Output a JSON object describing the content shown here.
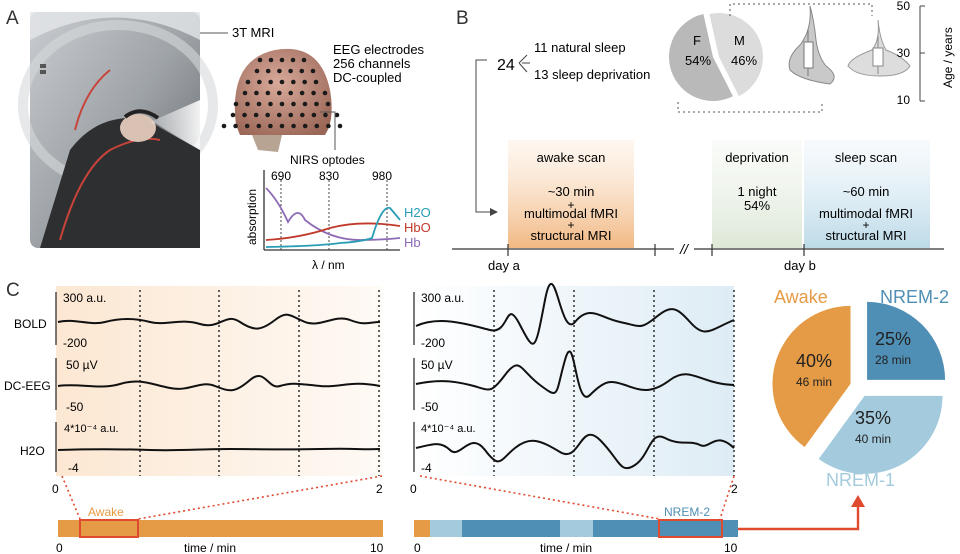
{
  "panels": {
    "a": "A",
    "b": "B",
    "c": "C"
  },
  "panel_a": {
    "mri_label": "3T MRI",
    "eeg": {
      "title": "EEG electrodes",
      "channels": "256 channels",
      "coupling": "DC-coupled"
    },
    "nirs": {
      "title": "NIRS optodes",
      "ylabel": "absorption",
      "xlabel": "λ / nm",
      "wavelengths": [
        "690",
        "830",
        "980"
      ],
      "legend": [
        {
          "name": "H2O",
          "color": "#2a9db5"
        },
        {
          "name": "HbO",
          "color": "#c0392b"
        },
        {
          "name": "Hb",
          "color": "#8e6bb5"
        }
      ]
    }
  },
  "panel_b": {
    "total": "24",
    "group1": "11 natural sleep",
    "group2": "13 sleep deprivation",
    "pie": {
      "f_label": "F",
      "f_value": "54%",
      "m_label": "M",
      "m_value": "46%",
      "f_fraction": 0.54
    },
    "age_axis": {
      "label": "Age / years",
      "ticks": [
        "50",
        "30",
        "10"
      ]
    },
    "awake_scan": {
      "title": "awake scan",
      "line1": "~30 min",
      "line2": "multimodal fMRI",
      "plus": "+",
      "line3": "structural MRI"
    },
    "deprivation": {
      "title": "deprivation",
      "line1": "1 night",
      "line2": "54%"
    },
    "sleep_scan": {
      "title": "sleep scan",
      "line1": "~60 min",
      "line2": "multimodal fMRI",
      "plus": "+",
      "line3": "structural MRI"
    },
    "day_a": "day a",
    "day_b": "day b",
    "break_mark": "//"
  },
  "panel_c": {
    "rows": [
      {
        "name": "BOLD",
        "top": "300 a.u.",
        "bottom": "-200"
      },
      {
        "name": "DC-EEG",
        "top": "50 µV",
        "bottom": "-50"
      },
      {
        "name": "H2O",
        "top": "4*10⁻⁴ a.u.",
        "bottom": "-4"
      }
    ],
    "x_start": "0",
    "x_end": "2",
    "timeline_left": {
      "label": "Awake",
      "x_start": "0",
      "x_end": "10",
      "xlabel": "time / min"
    },
    "timeline_right": {
      "label": "NREM-2",
      "x_start": "0",
      "x_end": "10",
      "xlabel": "time / min"
    },
    "colors": {
      "awake": "#e59a45",
      "nrem1": "#a3cbdd",
      "nrem2": "#4f8fb5",
      "highlight": "#e04a2f"
    }
  },
  "chart_data": {
    "type": "pie",
    "slices": [
      {
        "name": "Awake",
        "percent": "40%",
        "minutes": "46 min",
        "value": 40,
        "color": "#e59a45"
      },
      {
        "name": "NREM-2",
        "percent": "25%",
        "minutes": "28 min",
        "value": 25,
        "color": "#4f8fb5"
      },
      {
        "name": "NREM-1",
        "percent": "35%",
        "minutes": "40 min",
        "value": 35,
        "color": "#a3cbdd"
      }
    ]
  }
}
